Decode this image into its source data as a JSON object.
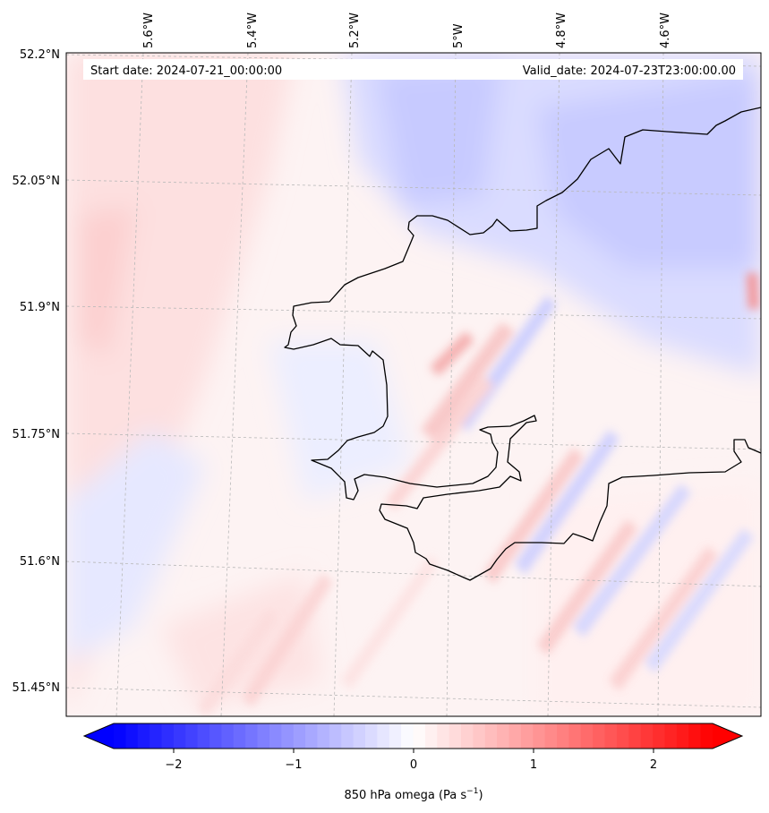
{
  "header": {
    "start_date": "Start date: 2024-07-21_00:00:00",
    "valid_date": "Valid_date: 2024-07-23T23:00:00.00"
  },
  "map": {
    "lon_labels": [
      "5.6°W",
      "5.4°W",
      "5.2°W",
      "5°W",
      "4.8°W",
      "4.6°W"
    ],
    "lat_labels": [
      "52.2°N",
      "52.05°N",
      "51.9°N",
      "51.75°N",
      "51.6°N",
      "51.45°N"
    ],
    "gridlines": true
  },
  "colorbar": {
    "ticks": [
      "−2",
      "−1",
      "0",
      "1",
      "2"
    ],
    "label_main": "850 hPa omega (Pa s",
    "label_sup": "−1",
    "label_end": ")",
    "min": -2.75,
    "max": 2.75,
    "colors": {
      "low": "#0000ff",
      "mid": "#ffffff",
      "high": "#ff0000"
    },
    "extend": "both"
  }
}
